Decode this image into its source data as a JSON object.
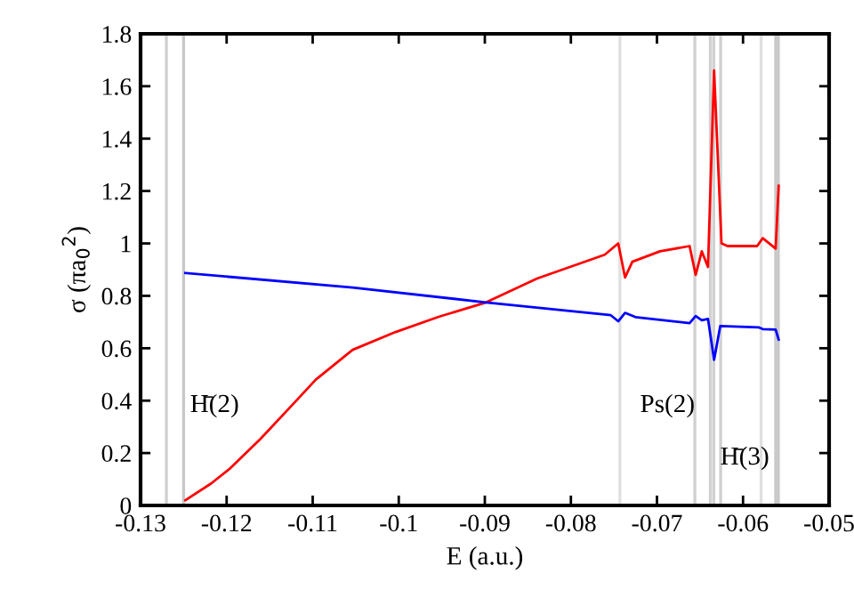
{
  "chart_data": {
    "type": "line",
    "xlabel": "E (a.u.)",
    "ylabel": "σ (πa$_{0}$$^{2}$)",
    "xlim": [
      -0.13,
      -0.05
    ],
    "ylim": [
      0,
      1.8
    ],
    "xticks": [
      -0.13,
      -0.12,
      -0.11,
      -0.1,
      -0.09,
      -0.08,
      -0.07,
      -0.06,
      -0.05
    ],
    "yticks": [
      0,
      0.2,
      0.4,
      0.6,
      0.8,
      1,
      1.2,
      1.4,
      1.6,
      1.8
    ],
    "grid": false,
    "marker": "none",
    "line_style": "solid",
    "series": [
      {
        "color": "#ff0000",
        "x": [
          -0.12479,
          -0.12179,
          -0.11964,
          -0.11607,
          -0.1125,
          -0.10964,
          -0.10536,
          -0.10036,
          -0.09536,
          -0.08986,
          -0.08393,
          -0.07607,
          -0.0745,
          -0.07371,
          -0.07286,
          -0.06964,
          -0.06621,
          -0.0655,
          -0.06479,
          -0.06407,
          -0.06336,
          -0.0625,
          -0.06179,
          -0.05836,
          -0.05771,
          -0.05621,
          -0.05586
        ],
        "values": [
          0.02,
          0.084,
          0.14,
          0.254,
          0.379,
          0.48,
          0.594,
          0.662,
          0.72,
          0.775,
          0.866,
          0.957,
          1.0,
          0.87,
          0.93,
          0.97,
          0.99,
          0.88,
          0.97,
          0.91,
          1.66,
          1.0,
          0.99,
          0.99,
          1.02,
          0.98,
          1.22
        ]
      },
      {
        "color": "#0000ff",
        "x": [
          -0.12479,
          -0.10536,
          -0.08986,
          -0.07536,
          -0.0745,
          -0.07371,
          -0.0725,
          -0.06621,
          -0.0655,
          -0.06479,
          -0.06407,
          -0.06336,
          -0.06264,
          -0.05821,
          -0.05771,
          -0.05621,
          -0.05586
        ],
        "values": [
          0.887,
          0.832,
          0.775,
          0.726,
          0.703,
          0.735,
          0.719,
          0.696,
          0.723,
          0.707,
          0.712,
          0.556,
          0.685,
          0.68,
          0.673,
          0.671,
          0.633
        ]
      }
    ],
    "ref_lines": [
      {
        "axis": "x",
        "value": -0.127,
        "color": "#d0d0d0"
      },
      {
        "axis": "x",
        "value": -0.125,
        "color": "#c8c8c8"
      },
      {
        "axis": "x",
        "value": -0.0743,
        "color": "#e0e0e0"
      },
      {
        "axis": "x",
        "value": -0.0656,
        "color": "#d0d0d0"
      },
      {
        "axis": "x",
        "value": -0.0638,
        "color": "#d0d0d0"
      },
      {
        "axis": "x",
        "value": -0.0634,
        "color": "#d0d0d0"
      },
      {
        "axis": "x",
        "value": -0.0626,
        "color": "#d0d0d0"
      },
      {
        "axis": "x",
        "value": -0.0579,
        "color": "#e0e0e0"
      },
      {
        "axis": "x",
        "value": -0.0562,
        "color": "#c8c8c8"
      },
      {
        "axis": "x",
        "value": -0.0559,
        "color": "#c8c8c8"
      }
    ],
    "annotations": [
      {
        "text": "H̄(2)",
        "x": -0.125,
        "y": 0.38
      },
      {
        "text": "Ps(2)",
        "x": -0.0656,
        "y": 0.38
      },
      {
        "text": "H̄(3)",
        "x": -0.0634,
        "y": 0.18
      }
    ]
  }
}
